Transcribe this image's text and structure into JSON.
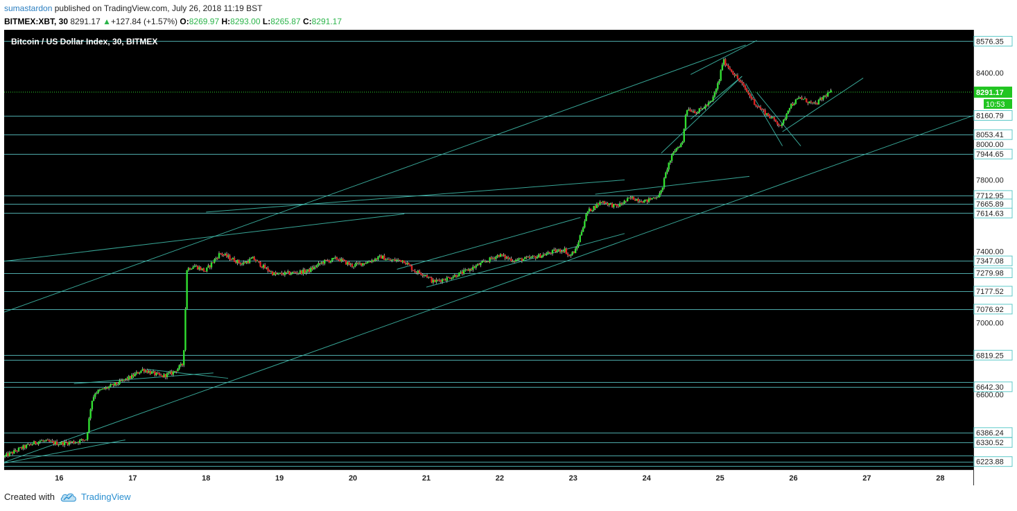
{
  "header": {
    "user": "sumastardon",
    "published": "published on TradingView.com, July 26, 2018 11:19 BST",
    "symbol": "BITMEX:XBT, 30",
    "last": "8291.17",
    "change": "+127.84 (+1.57%)",
    "o_label": "O:",
    "o_value": "8269.97",
    "h_label": "H:",
    "h_value": "8293.00",
    "l_label": "L:",
    "l_value": "8265.87",
    "c_label": "C:",
    "c_value": "8291.17"
  },
  "footer": {
    "created_with": "Created with",
    "brand": "TradingView",
    "icon": "tradingview-cloud-icon"
  },
  "colors": {
    "up": "#31e031",
    "down": "#e02020",
    "line": "#5cc8c8",
    "background": "#000000",
    "axis_bg": "#ffffff"
  },
  "chart_data": {
    "type": "candlestick",
    "title": "Bitcoin / US Dollar Index, 30, BITMEX",
    "xlabel": "",
    "ylabel": "",
    "ylim": [
      6180,
      8640
    ],
    "xlim": [
      15.25,
      28.45
    ],
    "x_ticks": [
      "16",
      "17",
      "18",
      "19",
      "20",
      "21",
      "22",
      "23",
      "24",
      "25",
      "26",
      "27",
      "28"
    ],
    "y_ticks": [
      "8400.00",
      "8000.00",
      "7800.00",
      "7400.00",
      "7000.00",
      "6600.00"
    ],
    "horizontal_levels": [
      8576.35,
      8160.79,
      8053.41,
      7944.65,
      7712.95,
      7665.89,
      7614.63,
      7347.08,
      7279.98,
      7177.52,
      7076.92,
      6819.25,
      6792.22,
      6670.25,
      6642.3,
      6386.24,
      6330.52,
      6257.62,
      6223.88,
      6200
    ],
    "level_labels": [
      "8576.35",
      "8160.79",
      "8053.41",
      "7944.65",
      "7712.95",
      "7665.89",
      "7614.63",
      "7347.08",
      "7279.98",
      "7177.52",
      "7076.92",
      "6819.25",
      "6642.30",
      "6386.24",
      "6330.52",
      "6223.88"
    ],
    "last_price": 8291.17,
    "last_price_label": "8291.17",
    "countdown": "10:53",
    "trendlines": [
      [
        [
          15.25,
          7060
        ],
        [
          25.35,
          8555
        ]
      ],
      [
        [
          15.25,
          6220
        ],
        [
          28.45,
          8160
        ]
      ],
      [
        [
          15.25,
          7345
        ],
        [
          20.7,
          7610
        ]
      ],
      [
        [
          18.0,
          7620
        ],
        [
          23.7,
          7800
        ]
      ],
      [
        [
          23.3,
          7720
        ],
        [
          25.4,
          7820
        ]
      ],
      [
        [
          20.6,
          7300
        ],
        [
          23.1,
          7590
        ]
      ],
      [
        [
          21.0,
          7200
        ],
        [
          23.7,
          7500
        ]
      ],
      [
        [
          15.25,
          6215
        ],
        [
          16.9,
          6345
        ]
      ],
      [
        [
          16.2,
          6660
        ],
        [
          18.1,
          6720
        ]
      ],
      [
        [
          17.2,
          6740
        ],
        [
          18.3,
          6690
        ]
      ],
      [
        [
          24.2,
          7950
        ],
        [
          25.3,
          8380
        ]
      ],
      [
        [
          24.6,
          8390
        ],
        [
          25.5,
          8580
        ]
      ],
      [
        [
          24.6,
          8140
        ],
        [
          25.3,
          8380
        ]
      ],
      [
        [
          25.35,
          8340
        ],
        [
          25.85,
          7990
        ]
      ],
      [
        [
          25.5,
          8290
        ],
        [
          26.1,
          7990
        ]
      ],
      [
        [
          25.85,
          8070
        ],
        [
          26.95,
          8370
        ]
      ]
    ],
    "anchors": [
      [
        15.25,
        6250
      ],
      [
        15.5,
        6300
      ],
      [
        15.75,
        6340
      ],
      [
        16.0,
        6325
      ],
      [
        16.25,
        6335
      ],
      [
        16.38,
        6350
      ],
      [
        16.45,
        6560
      ],
      [
        16.5,
        6610
      ],
      [
        16.8,
        6660
      ],
      [
        17.0,
        6700
      ],
      [
        17.15,
        6740
      ],
      [
        17.4,
        6700
      ],
      [
        17.55,
        6720
      ],
      [
        17.7,
        6770
      ],
      [
        17.75,
        7300
      ],
      [
        17.85,
        7320
      ],
      [
        18.0,
        7290
      ],
      [
        18.2,
        7390
      ],
      [
        18.35,
        7360
      ],
      [
        18.5,
        7330
      ],
      [
        18.65,
        7360
      ],
      [
        18.8,
        7310
      ],
      [
        18.95,
        7270
      ],
      [
        19.2,
        7280
      ],
      [
        19.4,
        7290
      ],
      [
        19.6,
        7340
      ],
      [
        19.8,
        7360
      ],
      [
        20.0,
        7320
      ],
      [
        20.2,
        7340
      ],
      [
        20.4,
        7370
      ],
      [
        20.5,
        7350
      ],
      [
        20.7,
        7350
      ],
      [
        20.85,
        7290
      ],
      [
        21.0,
        7270
      ],
      [
        21.1,
        7230
      ],
      [
        21.3,
        7250
      ],
      [
        21.5,
        7280
      ],
      [
        21.7,
        7320
      ],
      [
        21.9,
        7360
      ],
      [
        22.0,
        7380
      ],
      [
        22.2,
        7350
      ],
      [
        22.4,
        7360
      ],
      [
        22.6,
        7380
      ],
      [
        22.75,
        7400
      ],
      [
        22.9,
        7410
      ],
      [
        22.95,
        7370
      ],
      [
        23.05,
        7410
      ],
      [
        23.2,
        7620
      ],
      [
        23.4,
        7680
      ],
      [
        23.6,
        7650
      ],
      [
        23.8,
        7700
      ],
      [
        24.0,
        7680
      ],
      [
        24.2,
        7720
      ],
      [
        24.3,
        7880
      ],
      [
        24.4,
        7970
      ],
      [
        24.5,
        8010
      ],
      [
        24.55,
        8200
      ],
      [
        24.7,
        8180
      ],
      [
        24.9,
        8240
      ],
      [
        25.0,
        8360
      ],
      [
        25.05,
        8470
      ],
      [
        25.15,
        8420
      ],
      [
        25.3,
        8340
      ],
      [
        25.5,
        8220
      ],
      [
        25.7,
        8150
      ],
      [
        25.85,
        8100
      ],
      [
        25.95,
        8210
      ],
      [
        26.1,
        8260
      ],
      [
        26.3,
        8220
      ],
      [
        26.5,
        8291
      ]
    ]
  }
}
